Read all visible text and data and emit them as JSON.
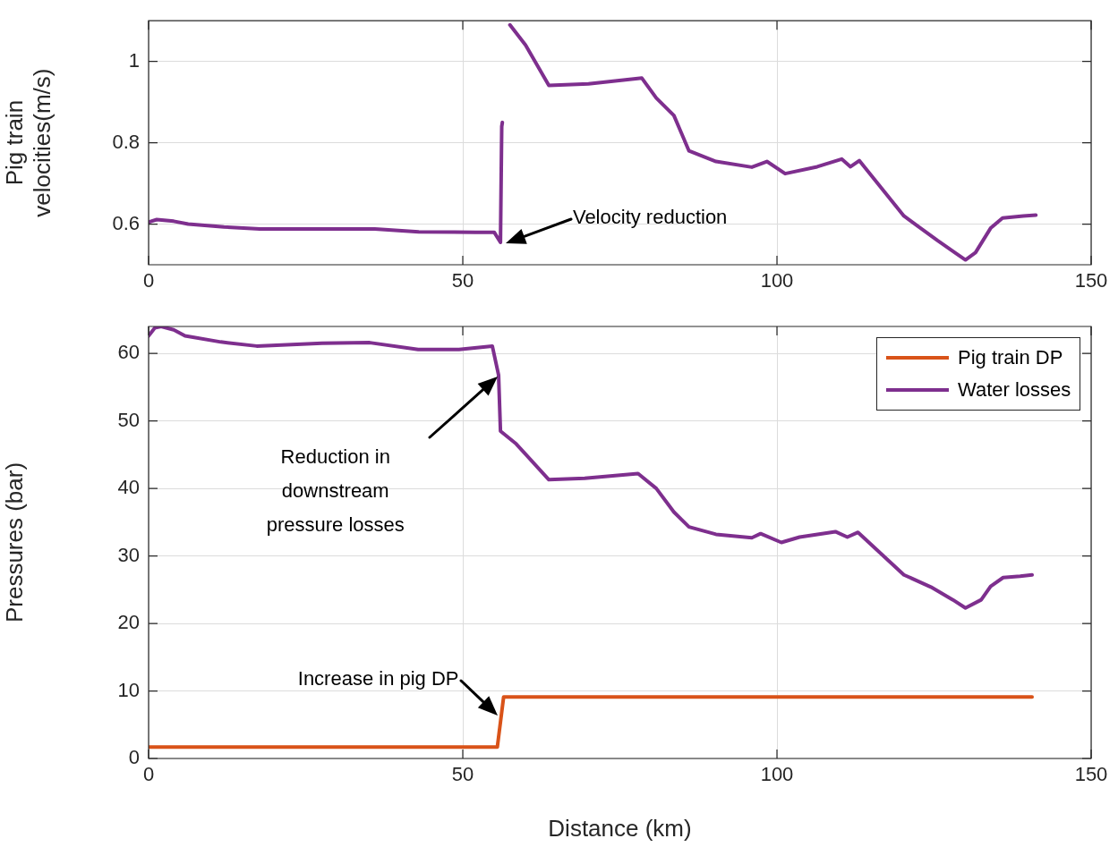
{
  "chart_data": [
    {
      "type": "line",
      "ylabel": "Pig train velocities(m/s)",
      "xlim": [
        0,
        150
      ],
      "xticks": [
        0,
        50,
        100,
        150
      ],
      "ylim": [
        0.5,
        1.1
      ],
      "yticks": [
        0.6,
        0.8,
        1
      ],
      "grid": true,
      "legend": false,
      "marker": "none",
      "line_style": "solid",
      "series": [
        {
          "color": "#7e2f8e",
          "x": [
            0,
            1.3,
            4,
            6.3,
            12,
            17.7,
            26,
            36,
            43,
            52,
            55,
            56,
            56.2,
            56.3,
            56.4,
            56.6,
            57.5,
            60,
            63.7,
            70,
            78.5,
            80.8,
            83.6,
            86,
            90.3,
            96,
            98.4,
            101.3,
            106.4,
            110.3,
            111.7,
            113.1,
            120.2,
            125.5,
            128.3,
            130,
            131.6,
            134,
            135.9,
            139.2,
            141.2
          ],
          "values": [
            0.605,
            0.611,
            0.607,
            0.6,
            0.593,
            0.588,
            0.588,
            0.588,
            0.581,
            0.58,
            0.58,
            0.555,
            0.84,
            0.85,
            null,
            null,
            1.09,
            1.04,
            0.941,
            0.945,
            0.959,
            0.91,
            0.867,
            0.78,
            0.754,
            0.74,
            0.754,
            0.724,
            0.741,
            0.76,
            0.741,
            0.756,
            0.62,
            0.56,
            0.53,
            0.512,
            0.53,
            0.59,
            0.615,
            0.62,
            0.622
          ]
        }
      ],
      "annotations": [
        "Velocity reduction"
      ]
    },
    {
      "type": "line",
      "xlabel": "Distance (km)",
      "ylabel": "Pressures (bar)",
      "xlim": [
        0,
        150
      ],
      "xticks": [
        0,
        50,
        100,
        150
      ],
      "ylim": [
        0,
        64
      ],
      "yticks": [
        0,
        10,
        20,
        30,
        40,
        50,
        60
      ],
      "grid": true,
      "legend": "top right",
      "marker": "none",
      "line_style": "solid",
      "series": [
        {
          "name": "Pig train DP",
          "color": "#d95319",
          "x": [
            0,
            55.5,
            56.5,
            140.6
          ],
          "values": [
            1.7,
            1.7,
            9.1,
            9.1
          ]
        },
        {
          "name": "Water losses",
          "color": "#7e2f8e",
          "x": [
            0,
            1,
            2,
            4,
            5.8,
            11.5,
            17.2,
            27.6,
            35.2,
            42.9,
            49.4,
            54.7,
            55.7,
            56,
            58.5,
            63.7,
            69.4,
            77.9,
            80.8,
            83.6,
            86,
            90.3,
            96,
            97.4,
            100.7,
            103.6,
            109.3,
            111.2,
            112.9,
            120.2,
            124.5,
            128,
            130,
            132.5,
            134,
            136,
            138.7,
            140.6
          ],
          "values": [
            62.6,
            63.8,
            64,
            63.5,
            62.6,
            61.7,
            61.1,
            61.5,
            61.6,
            60.6,
            60.6,
            61.1,
            56.8,
            48.5,
            46.6,
            41.3,
            41.5,
            42.2,
            40,
            36.5,
            34.3,
            33.2,
            32.7,
            33.3,
            32,
            32.8,
            33.6,
            32.8,
            33.5,
            27.2,
            25.4,
            23.5,
            22.3,
            23.5,
            25.5,
            26.8,
            27,
            27.2
          ]
        }
      ],
      "annotations": [
        "Reduction in downstream pressure losses",
        "Increase in pig DP"
      ]
    }
  ]
}
